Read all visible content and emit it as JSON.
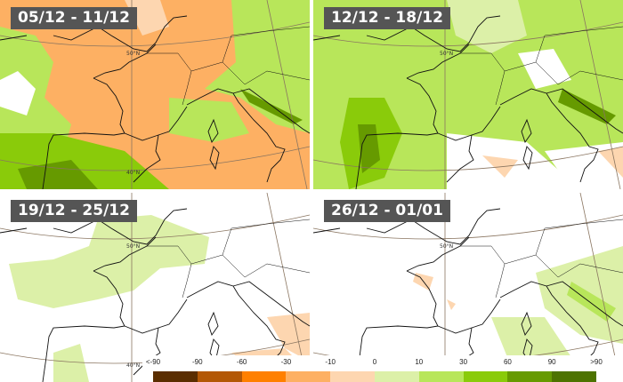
{
  "panels": [
    {
      "label": "05/12 - 11/12"
    },
    {
      "label": "12/12 - 18/12"
    },
    {
      "label": "19/12 - 25/12"
    },
    {
      "label": "26/12 - 01/01"
    }
  ],
  "latitude_labels": [
    "50°N",
    "40°N"
  ],
  "legend": {
    "ticks": [
      "<-90",
      "-90",
      "-60",
      "-30",
      "-10",
      "0",
      "10",
      "30",
      "60",
      "90",
      ">90"
    ],
    "colors": [
      "#5a2d00",
      "#b35806",
      "#ff8000",
      "#fdb063",
      "#fdd6b0",
      "#dcf0a8",
      "#b8e65a",
      "#8acb0a",
      "#669a00",
      "#4d7300"
    ]
  }
}
